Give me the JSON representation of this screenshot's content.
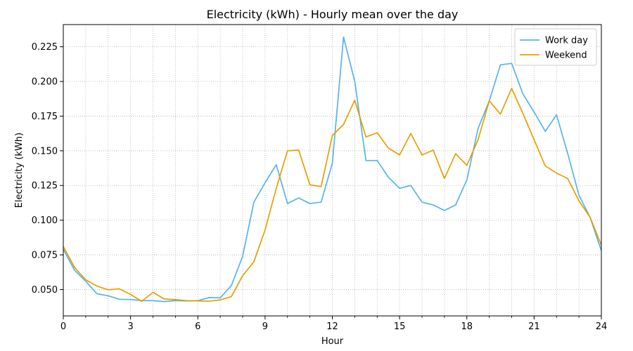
{
  "chart_data": {
    "type": "line",
    "title": "Electricity (kWh) - Hourly mean over the day",
    "xlabel": "Hour",
    "ylabel": "Electricity (kWh)",
    "xlim": [
      0,
      24
    ],
    "ylim": [
      0.031,
      0.241
    ],
    "x_ticks": [
      0,
      3,
      6,
      9,
      12,
      15,
      18,
      21,
      24
    ],
    "y_ticks": [
      0.05,
      0.075,
      0.1,
      0.125,
      0.15,
      0.175,
      0.2,
      0.225
    ],
    "y_tick_labels": [
      "0.050",
      "0.075",
      "0.100",
      "0.125",
      "0.150",
      "0.175",
      "0.200",
      "0.225"
    ],
    "x_minor_step": 1,
    "grid": true,
    "legend_position": "top-right",
    "x": [
      0,
      0.5,
      1,
      1.5,
      2,
      2.5,
      3,
      3.5,
      4,
      4.5,
      5,
      5.5,
      6,
      6.5,
      7,
      7.5,
      8,
      8.5,
      9,
      9.5,
      10,
      10.5,
      11,
      11.5,
      12,
      12.5,
      13,
      13.5,
      14,
      14.5,
      15,
      15.5,
      16,
      16.5,
      17,
      17.5,
      18,
      18.5,
      19,
      19.5,
      20,
      20.5,
      21,
      21.5,
      22,
      22.5,
      23,
      23.5,
      24
    ],
    "series": [
      {
        "name": "Work day",
        "color": "#56b4e9",
        "values": [
          0.079,
          0.064,
          0.056,
          0.047,
          0.0455,
          0.043,
          0.0428,
          0.042,
          0.042,
          0.0413,
          0.042,
          0.0418,
          0.042,
          0.0442,
          0.044,
          0.053,
          0.074,
          0.113,
          0.127,
          0.14,
          0.112,
          0.116,
          0.112,
          0.113,
          0.141,
          0.232,
          0.2,
          0.143,
          0.143,
          0.131,
          0.123,
          0.125,
          0.113,
          0.111,
          0.107,
          0.111,
          0.129,
          0.166,
          0.186,
          0.212,
          0.213,
          0.191,
          0.178,
          0.164,
          0.176,
          0.148,
          0.118,
          0.102,
          0.078
        ]
      },
      {
        "name": "Weekend",
        "color": "#e69f00",
        "values": [
          0.081,
          0.066,
          0.057,
          0.0525,
          0.0498,
          0.0505,
          0.0465,
          0.0415,
          0.048,
          0.0432,
          0.0427,
          0.042,
          0.0418,
          0.0416,
          0.0425,
          0.045,
          0.06,
          0.07,
          0.093,
          0.123,
          0.15,
          0.1505,
          0.1255,
          0.1242,
          0.161,
          0.169,
          0.1865,
          0.16,
          0.163,
          0.152,
          0.147,
          0.1625,
          0.147,
          0.1505,
          0.13,
          0.148,
          0.1395,
          0.158,
          0.186,
          0.1765,
          0.195,
          0.177,
          0.158,
          0.139,
          0.134,
          0.13,
          0.114,
          0.102,
          0.082
        ]
      }
    ]
  }
}
